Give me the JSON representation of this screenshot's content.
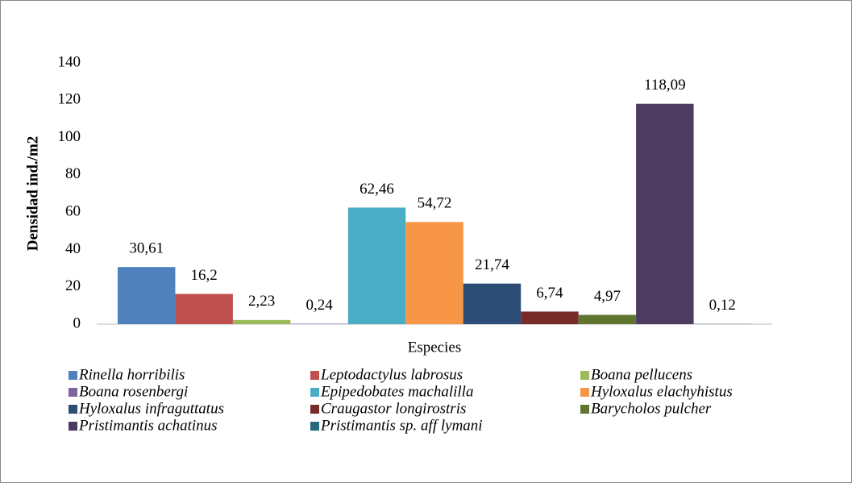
{
  "chart_data": {
    "type": "bar",
    "ylabel": "Densidad  ind./m2",
    "categories": [
      "Especies"
    ],
    "ylim": [
      0,
      140
    ],
    "yticks": [
      0,
      20,
      40,
      60,
      80,
      100,
      120,
      140
    ],
    "series": [
      {
        "name": "Rinella horribilis",
        "color": "#4f81bd",
        "values": [
          30.61
        ],
        "value_labels": [
          "30,61"
        ]
      },
      {
        "name": "Leptodactylus labrosus",
        "color": "#c0504d",
        "values": [
          16.2
        ],
        "value_labels": [
          "16,2"
        ]
      },
      {
        "name": "Boana pellucens",
        "color": "#9bbb59",
        "values": [
          2.23
        ],
        "value_labels": [
          "2,23"
        ]
      },
      {
        "name": "Boana rosenbergi",
        "color": "#8064a2",
        "values": [
          0.24
        ],
        "value_labels": [
          "0,24"
        ]
      },
      {
        "name": "Epipedobates machalilla",
        "color": "#4bacc6",
        "values": [
          62.46
        ],
        "value_labels": [
          "62,46"
        ]
      },
      {
        "name": "Hyloxalus elachyhistus",
        "color": "#f79646",
        "values": [
          54.72
        ],
        "value_labels": [
          "54,72"
        ]
      },
      {
        "name": "Hyloxalus infraguttatus",
        "color": "#2c4d75",
        "values": [
          21.74
        ],
        "value_labels": [
          "21,74"
        ]
      },
      {
        "name": "Craugastor longirostris",
        "color": "#772c2a",
        "values": [
          6.74
        ],
        "value_labels": [
          "6,74"
        ]
      },
      {
        "name": "Barycholos pulcher",
        "color": "#5f7530",
        "values": [
          4.97
        ],
        "value_labels": [
          "4,97"
        ]
      },
      {
        "name": "Pristimantis achatinus",
        "color": "#4d3b62",
        "values": [
          118.09
        ],
        "value_labels": [
          "118,09"
        ]
      },
      {
        "name": "Pristimantis sp. aff lymani",
        "color": "#276a7c",
        "values": [
          0.12
        ],
        "value_labels": [
          "0,12"
        ]
      }
    ],
    "legend": "bottom"
  }
}
